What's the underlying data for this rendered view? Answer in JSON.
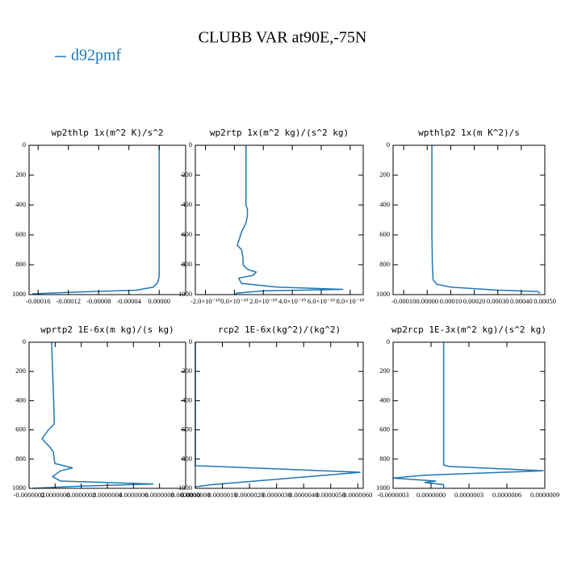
{
  "suptitle": "CLUBB VAR at90E,-75N",
  "chart_data": [
    {
      "type": "line",
      "title": "wp2thlp  1x(m^2 K)/s^2",
      "y": [
        0,
        200,
        400,
        600,
        800,
        880,
        920,
        950,
        970,
        985,
        995
      ],
      "ylim": [
        0,
        1000
      ],
      "y_inverted": true,
      "yticks": [
        0,
        200,
        400,
        600,
        800,
        1000
      ],
      "xlim": [
        -0.000172,
        3.5e-05
      ],
      "xticks": [
        -0.00016,
        -0.00012,
        -8e-05,
        -4e-05,
        {
          "value": 0,
          "label": "0.00000"
        }
      ],
      "series": [
        {
          "name": "d92pmf",
          "color": "#1f77b4",
          "values": [
            0,
            0,
            0,
            0,
            0,
            0,
            -2e-06,
            -8e-06,
            -3e-05,
            -0.00012,
            -0.000168
          ]
        }
      ]
    },
    {
      "type": "line",
      "title": "wp2rtp  1x(m^2 kg)/(s^2 kg)",
      "y": [
        0,
        200,
        400,
        430,
        470,
        520,
        580,
        640,
        670,
        700,
        760,
        800,
        830,
        850,
        870,
        890,
        910,
        925,
        950,
        965,
        975,
        990,
        1000
      ],
      "ylim": [
        0,
        1000
      ],
      "y_inverted": true,
      "yticks": [
        0,
        200,
        400,
        600,
        800,
        1000
      ],
      "xlim": [
        -2.7e-10,
        8.9e-10
      ],
      "xticks": [
        {
          "value": -2e-10,
          "label": "-2.0×10⁻¹⁰"
        },
        {
          "value": 0,
          "label": "0.0×10⁻¹⁰"
        },
        {
          "value": 2e-10,
          "label": "2.0×10⁻¹⁰"
        },
        {
          "value": 4e-10,
          "label": "4.0×10⁻¹⁰"
        },
        {
          "value": 6e-10,
          "label": "6.0×10⁻¹⁰"
        },
        {
          "value": 8e-10,
          "label": "8.0×10⁻¹⁰"
        }
      ],
      "series": [
        {
          "name": "d92pmf",
          "color": "#1f77b4",
          "values": [
            8e-11,
            8e-11,
            8e-11,
            9e-11,
            9e-11,
            8e-11,
            5e-11,
            3e-11,
            2e-11,
            5e-11,
            6e-11,
            6e-11,
            9e-11,
            1.5e-10,
            1.3e-10,
            3e-11,
            4e-11,
            5e-11,
            3e-10,
            7.5e-10,
            2e-10,
            2e-11,
            0
          ]
        }
      ]
    },
    {
      "type": "line",
      "title": "wpthlp2  1x(m K^2)/s",
      "y": [
        0,
        200,
        400,
        600,
        800,
        900,
        930,
        950,
        970,
        980,
        990
      ],
      "ylim": [
        0,
        1000
      ],
      "y_inverted": true,
      "yticks": [
        0,
        200,
        400,
        600,
        800,
        1000
      ],
      "xlim": [
        -0.000145,
        0.0005
      ],
      "xticks": [
        {
          "value": -0.0001,
          "label": "-0.00010"
        },
        {
          "value": 0,
          "label": "0.00000"
        },
        {
          "value": 0.0001,
          "label": "0.00010"
        },
        {
          "value": 0.0002,
          "label": "0.00020"
        },
        {
          "value": 0.0003,
          "label": "0.00030"
        },
        {
          "value": 0.0004,
          "label": "0.00040"
        },
        {
          "value": 0.0005,
          "label": "0.00050"
        }
      ],
      "series": [
        {
          "name": "d92pmf",
          "color": "#1f77b4",
          "values": [
            2e-05,
            2e-05,
            2e-05,
            2e-05,
            2.2e-05,
            2.5e-05,
            4e-05,
            0.0001,
            0.0003,
            0.00047,
            0.00048
          ]
        }
      ]
    },
    {
      "type": "line",
      "title": "wprtp2  1E-6x(m kg)/(s kg)",
      "y": [
        0,
        500,
        560,
        600,
        660,
        720,
        750,
        830,
        860,
        880,
        920,
        950,
        970,
        985,
        1000
      ],
      "ylim": [
        0,
        1000
      ],
      "y_inverted": true,
      "yticks": [
        0,
        200,
        400,
        600,
        800,
        1000
      ],
      "xlim": [
        -2e-07,
        1e-06
      ],
      "xticks": [
        {
          "value": -2e-07,
          "label": "-0.0000002"
        },
        {
          "value": 0,
          "label": "0.0000000"
        },
        {
          "value": 2e-07,
          "label": "0.0000002"
        },
        {
          "value": 4e-07,
          "label": "0.0000004"
        },
        {
          "value": 6e-07,
          "label": "0.0000006"
        },
        {
          "value": 8e-07,
          "label": "0.0000008"
        },
        {
          "value": 1e-06,
          "label": "0.0000010"
        }
      ],
      "series": [
        {
          "name": "d92pmf",
          "color": "#1f77b4",
          "values": [
            -2.7e-08,
            -8e-09,
            -8e-09,
            -5.1e-08,
            -1.01e-07,
            -3.9e-08,
            -1.4e-08,
            -2e-09,
            1.34e-07,
            4.1e-08,
            -2e-08,
            4.1e-08,
            7.53e-07,
            1.96e-07,
            -1.75e-07
          ]
        }
      ]
    },
    {
      "type": "line",
      "title": "rcp2  1E-6x(kg^2)/(kg^2)",
      "y": [
        0,
        200,
        400,
        600,
        800,
        845,
        890,
        975,
        990,
        1000
      ],
      "ylim": [
        0,
        1000
      ],
      "y_inverted": true,
      "yticks": [
        0,
        200,
        400,
        600,
        800,
        1000
      ],
      "xlim": [
        0,
        6.2e-06
      ],
      "xticks": [
        {
          "value": 0,
          "label": "0.0000000"
        },
        {
          "value": 1e-06,
          "label": "0.0000010"
        },
        {
          "value": 2e-06,
          "label": "0.0000020"
        },
        {
          "value": 3e-06,
          "label": "0.0000030"
        },
        {
          "value": 4e-06,
          "label": "0.0000040"
        },
        {
          "value": 5e-06,
          "label": "0.0000050"
        },
        {
          "value": 6e-06,
          "label": "0.0000060"
        }
      ],
      "series": [
        {
          "name": "d92pmf",
          "color": "#1f77b4",
          "values": [
            0,
            0,
            0,
            0,
            0,
            0,
            6.1e-06,
            6e-07,
            0,
            0
          ]
        }
      ]
    },
    {
      "type": "line",
      "title": "wp2rcp  1E-3x(m^2 kg)/(s^2 kg)",
      "y": [
        0,
        200,
        400,
        600,
        800,
        840,
        850,
        880,
        910,
        930,
        950,
        960,
        975,
        1000
      ],
      "ylim": [
        0,
        1000
      ],
      "y_inverted": true,
      "yticks": [
        0,
        200,
        400,
        600,
        800,
        1000
      ],
      "xlim": [
        -3e-07,
        9e-07
      ],
      "xticks": [
        {
          "value": -3e-07,
          "label": "-0.0000003"
        },
        {
          "value": 0,
          "label": "0.0000000"
        },
        {
          "value": 3e-07,
          "label": "0.0000003"
        },
        {
          "value": 6e-07,
          "label": "0.0000006"
        },
        {
          "value": 9e-07,
          "label": "0.0000009"
        }
      ],
      "series": [
        {
          "name": "d92pmf",
          "color": "#1f77b4",
          "values": [
            1e-07,
            1e-07,
            1e-07,
            1e-07,
            1e-07,
            1e-07,
            1.4e-07,
            8.9e-07,
            -5e-08,
            -3e-07,
            4e-08,
            -5e-08,
            1e-07,
            1e-07
          ]
        }
      ]
    }
  ]
}
